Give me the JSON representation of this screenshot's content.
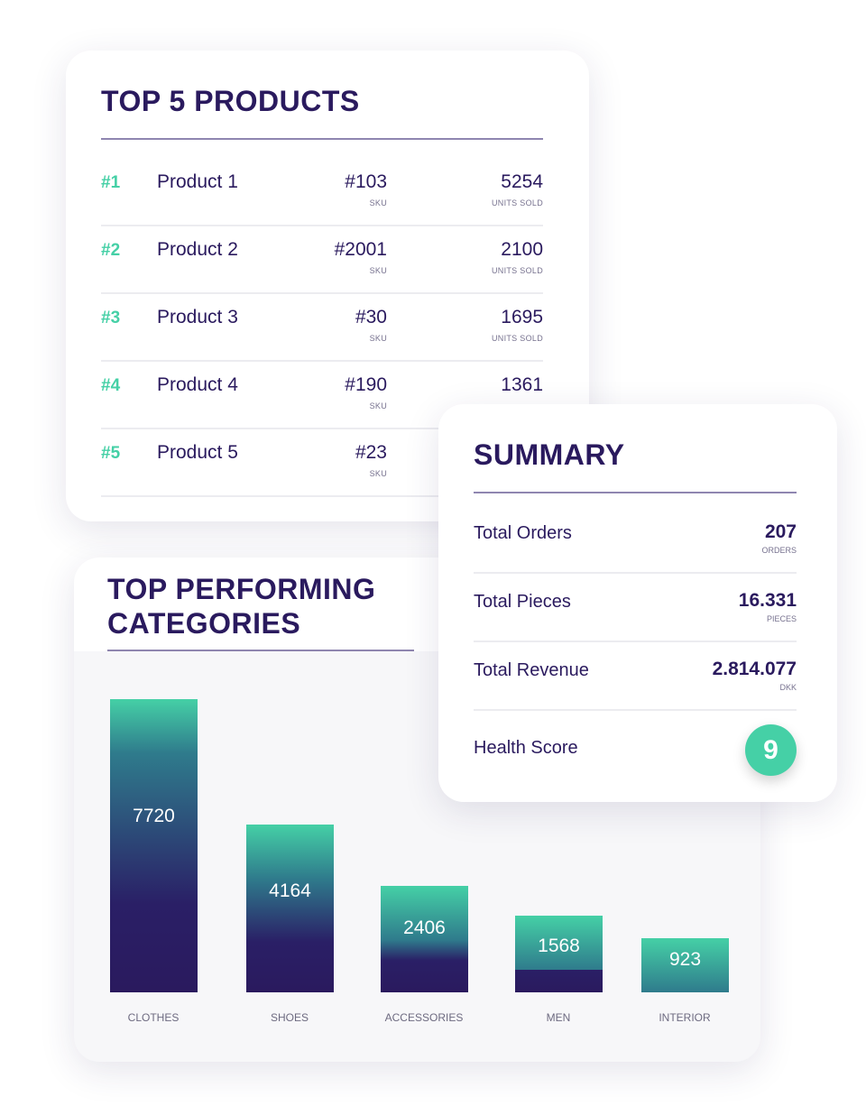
{
  "products": {
    "title": "TOP 5 PRODUCTS",
    "sku_label": "SKU",
    "units_label": "UNITS SOLD",
    "items": [
      {
        "rank": "#1",
        "name": "Product 1",
        "sku": "#103",
        "units": "5254"
      },
      {
        "rank": "#2",
        "name": "Product 2",
        "sku": "#2001",
        "units": "2100"
      },
      {
        "rank": "#3",
        "name": "Product 3",
        "sku": "#30",
        "units": "1695"
      },
      {
        "rank": "#4",
        "name": "Product 4",
        "sku": "#190",
        "units": "1361"
      },
      {
        "rank": "#5",
        "name": "Product 5",
        "sku": "#23",
        "units": ""
      }
    ]
  },
  "categories": {
    "title": "TOP PERFORMING CATEGORIES"
  },
  "chart_data": {
    "type": "bar",
    "title": "TOP PERFORMING CATEGORIES",
    "categories": [
      "CLOTHES",
      "SHOES",
      "ACCESSORIES",
      "MEN",
      "INTERIOR"
    ],
    "values": [
      7720,
      4164,
      2406,
      1568,
      923
    ],
    "xlabel": "",
    "ylabel": ""
  },
  "summary": {
    "title": "SUMMARY",
    "rows": [
      {
        "label": "Total Orders",
        "value": "207",
        "unit": "ORDERS"
      },
      {
        "label": "Total Pieces",
        "value": "16.331",
        "unit": "PIECES"
      },
      {
        "label": "Total Revenue",
        "value": "2.814.077",
        "unit": "DKK"
      }
    ],
    "health_label": "Health Score",
    "health_value": "9"
  },
  "colors": {
    "navy": "#2a1a5e",
    "green": "#45d0a6"
  }
}
